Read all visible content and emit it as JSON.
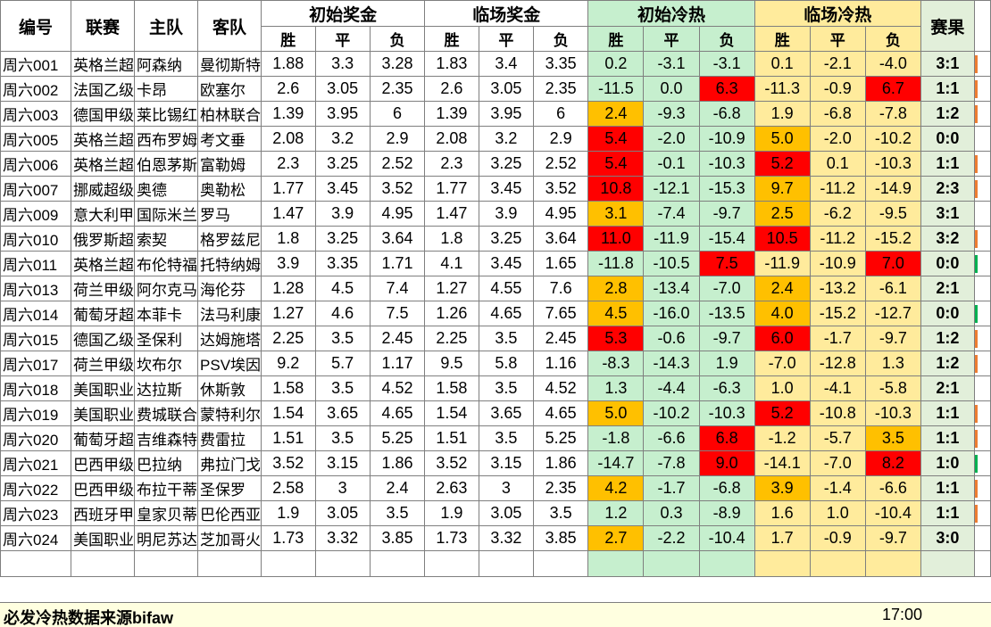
{
  "headers": {
    "id": "编号",
    "league": "联赛",
    "home": "主队",
    "away": "客队",
    "init_odds": "初始奖金",
    "live_odds": "临场奖金",
    "init_heat": "初始冷热",
    "live_heat": "临场冷热",
    "result": "赛果",
    "win": "胜",
    "draw": "平",
    "loss": "负"
  },
  "colors": {
    "red": "#ff0000",
    "orange": "#ffc000",
    "green_edge": "#00b050",
    "orange_edge": "#ed7d31"
  },
  "rows": [
    {
      "id": "周六001",
      "league": "英格兰超",
      "home": "阿森纳",
      "away": "曼彻斯特",
      "io": [
        "1.88",
        "3.3",
        "3.28"
      ],
      "lo": [
        "1.83",
        "3.4",
        "3.35"
      ],
      "ih": [
        "0.2",
        "-3.1",
        "-3.1"
      ],
      "lh": [
        "0.1",
        "-2.1",
        "-4.0"
      ],
      "ihc": [
        "",
        "",
        ""
      ],
      "lhc": [
        "",
        "",
        ""
      ],
      "res": "3:1",
      "edge": "orange"
    },
    {
      "id": "周六002",
      "league": "法国乙级",
      "home": "卡昂",
      "away": "欧塞尔",
      "io": [
        "2.6",
        "3.05",
        "2.35"
      ],
      "lo": [
        "2.6",
        "3.05",
        "2.35"
      ],
      "ih": [
        "-11.5",
        "0.0",
        "6.3"
      ],
      "lh": [
        "-11.3",
        "-0.9",
        "6.7"
      ],
      "ihc": [
        "",
        "",
        "red"
      ],
      "lhc": [
        "",
        "",
        "red"
      ],
      "res": "1:1",
      "edge": "orange"
    },
    {
      "id": "周六003",
      "league": "德国甲级",
      "home": "莱比锡红",
      "away": "柏林联合",
      "io": [
        "1.39",
        "3.95",
        "6"
      ],
      "lo": [
        "1.39",
        "3.95",
        "6"
      ],
      "ih": [
        "2.4",
        "-9.3",
        "-6.8"
      ],
      "lh": [
        "1.9",
        "-6.8",
        "-7.8"
      ],
      "ihc": [
        "orange",
        "",
        ""
      ],
      "lhc": [
        "",
        "",
        ""
      ],
      "res": "1:2",
      "edge": "orange"
    },
    {
      "id": "周六005",
      "league": "英格兰超",
      "home": "西布罗姆",
      "away": "考文垂",
      "io": [
        "2.08",
        "3.2",
        "2.9"
      ],
      "lo": [
        "2.08",
        "3.2",
        "2.9"
      ],
      "ih": [
        "5.4",
        "-2.0",
        "-10.9"
      ],
      "lh": [
        "5.0",
        "-2.0",
        "-10.2"
      ],
      "ihc": [
        "red",
        "",
        ""
      ],
      "lhc": [
        "orange",
        "",
        ""
      ],
      "res": "0:0",
      "edge": ""
    },
    {
      "id": "周六006",
      "league": "英格兰超",
      "home": "伯恩茅斯",
      "away": "富勒姆",
      "io": [
        "2.3",
        "3.25",
        "2.52"
      ],
      "lo": [
        "2.3",
        "3.25",
        "2.52"
      ],
      "ih": [
        "5.4",
        "-0.1",
        "-10.3"
      ],
      "lh": [
        "5.2",
        "0.1",
        "-10.3"
      ],
      "ihc": [
        "red",
        "",
        ""
      ],
      "lhc": [
        "red",
        "",
        ""
      ],
      "res": "1:1",
      "edge": "orange"
    },
    {
      "id": "周六007",
      "league": "挪威超级",
      "home": "奥德",
      "away": "奥勒松",
      "io": [
        "1.77",
        "3.45",
        "3.52"
      ],
      "lo": [
        "1.77",
        "3.45",
        "3.52"
      ],
      "ih": [
        "10.8",
        "-12.1",
        "-15.3"
      ],
      "lh": [
        "9.7",
        "-11.2",
        "-14.9"
      ],
      "ihc": [
        "red",
        "",
        ""
      ],
      "lhc": [
        "orange",
        "",
        ""
      ],
      "res": "2:3",
      "edge": "orange"
    },
    {
      "id": "周六009",
      "league": "意大利甲",
      "home": "国际米兰",
      "away": "罗马",
      "io": [
        "1.47",
        "3.9",
        "4.95"
      ],
      "lo": [
        "1.47",
        "3.9",
        "4.95"
      ],
      "ih": [
        "3.1",
        "-7.4",
        "-9.7"
      ],
      "lh": [
        "2.5",
        "-6.2",
        "-9.5"
      ],
      "ihc": [
        "orange",
        "",
        ""
      ],
      "lhc": [
        "orange",
        "",
        ""
      ],
      "res": "3:1",
      "edge": ""
    },
    {
      "id": "周六010",
      "league": "俄罗斯超",
      "home": "索契",
      "away": "格罗兹尼",
      "io": [
        "1.8",
        "3.25",
        "3.64"
      ],
      "lo": [
        "1.8",
        "3.25",
        "3.64"
      ],
      "ih": [
        "11.0",
        "-11.9",
        "-15.4"
      ],
      "lh": [
        "10.5",
        "-11.2",
        "-15.2"
      ],
      "ihc": [
        "red",
        "",
        ""
      ],
      "lhc": [
        "red",
        "",
        ""
      ],
      "res": "3:2",
      "edge": "orange"
    },
    {
      "id": "周六011",
      "league": "英格兰超",
      "home": "布伦特福",
      "away": "托特纳姆",
      "io": [
        "3.9",
        "3.35",
        "1.71"
      ],
      "lo": [
        "4.1",
        "3.45",
        "1.65"
      ],
      "ih": [
        "-11.8",
        "-10.5",
        "7.5"
      ],
      "lh": [
        "-11.9",
        "-10.9",
        "7.0"
      ],
      "ihc": [
        "",
        "",
        "red"
      ],
      "lhc": [
        "",
        "",
        "red"
      ],
      "res": "0:0",
      "edge": "green"
    },
    {
      "id": "周六013",
      "league": "荷兰甲级",
      "home": "阿尔克马",
      "away": "海伦芬",
      "io": [
        "1.28",
        "4.5",
        "7.4"
      ],
      "lo": [
        "1.27",
        "4.55",
        "7.6"
      ],
      "ih": [
        "2.8",
        "-13.4",
        "-7.0"
      ],
      "lh": [
        "2.4",
        "-13.2",
        "-6.1"
      ],
      "ihc": [
        "orange",
        "",
        ""
      ],
      "lhc": [
        "orange",
        "",
        ""
      ],
      "res": "2:1",
      "edge": ""
    },
    {
      "id": "周六014",
      "league": "葡萄牙超",
      "home": "本菲卡",
      "away": "法马利康",
      "io": [
        "1.27",
        "4.6",
        "7.5"
      ],
      "lo": [
        "1.26",
        "4.65",
        "7.65"
      ],
      "ih": [
        "4.5",
        "-16.0",
        "-13.5"
      ],
      "lh": [
        "4.0",
        "-15.2",
        "-12.7"
      ],
      "ihc": [
        "orange",
        "",
        ""
      ],
      "lhc": [
        "orange",
        "",
        ""
      ],
      "res": "0:0",
      "edge": "green"
    },
    {
      "id": "周六015",
      "league": "德国乙级",
      "home": "圣保利",
      "away": "达姆施塔",
      "io": [
        "2.25",
        "3.5",
        "2.45"
      ],
      "lo": [
        "2.25",
        "3.5",
        "2.45"
      ],
      "ih": [
        "5.3",
        "-0.6",
        "-9.7"
      ],
      "lh": [
        "6.0",
        "-1.7",
        "-9.7"
      ],
      "ihc": [
        "red",
        "",
        ""
      ],
      "lhc": [
        "red",
        "",
        ""
      ],
      "res": "1:2",
      "edge": "orange"
    },
    {
      "id": "周六017",
      "league": "荷兰甲级",
      "home": "坎布尔",
      "away": "PSV埃因",
      "io": [
        "9.2",
        "5.7",
        "1.17"
      ],
      "lo": [
        "9.5",
        "5.8",
        "1.16"
      ],
      "ih": [
        "-8.3",
        "-14.3",
        "1.9"
      ],
      "lh": [
        "-7.0",
        "-12.8",
        "1.3"
      ],
      "ihc": [
        "",
        "",
        ""
      ],
      "lhc": [
        "",
        "",
        ""
      ],
      "res": "1:2",
      "edge": "orange"
    },
    {
      "id": "周六018",
      "league": "美国职业",
      "home": "达拉斯",
      "away": "休斯敦",
      "io": [
        "1.58",
        "3.5",
        "4.52"
      ],
      "lo": [
        "1.58",
        "3.5",
        "4.52"
      ],
      "ih": [
        "1.3",
        "-4.4",
        "-6.3"
      ],
      "lh": [
        "1.0",
        "-4.1",
        "-5.8"
      ],
      "ihc": [
        "",
        "",
        ""
      ],
      "lhc": [
        "",
        "",
        ""
      ],
      "res": "2:1",
      "edge": ""
    },
    {
      "id": "周六019",
      "league": "美国职业",
      "home": "费城联合",
      "away": "蒙特利尔",
      "io": [
        "1.54",
        "3.65",
        "4.65"
      ],
      "lo": [
        "1.54",
        "3.65",
        "4.65"
      ],
      "ih": [
        "5.0",
        "-10.2",
        "-10.3"
      ],
      "lh": [
        "5.2",
        "-10.8",
        "-10.3"
      ],
      "ihc": [
        "orange",
        "",
        ""
      ],
      "lhc": [
        "red",
        "",
        ""
      ],
      "res": "1:1",
      "edge": "orange"
    },
    {
      "id": "周六020",
      "league": "葡萄牙超",
      "home": "吉维森特",
      "away": "费雷拉",
      "io": [
        "1.51",
        "3.5",
        "5.25"
      ],
      "lo": [
        "1.51",
        "3.5",
        "5.25"
      ],
      "ih": [
        "-1.8",
        "-6.6",
        "6.8"
      ],
      "lh": [
        "-1.2",
        "-5.7",
        "3.5"
      ],
      "ihc": [
        "",
        "",
        "red"
      ],
      "lhc": [
        "",
        "",
        "orange"
      ],
      "res": "1:1",
      "edge": "orange"
    },
    {
      "id": "周六021",
      "league": "巴西甲级",
      "home": "巴拉纳",
      "away": "弗拉门戈",
      "io": [
        "3.52",
        "3.15",
        "1.86"
      ],
      "lo": [
        "3.52",
        "3.15",
        "1.86"
      ],
      "ih": [
        "-14.7",
        "-7.8",
        "9.0"
      ],
      "lh": [
        "-14.1",
        "-7.0",
        "8.2"
      ],
      "ihc": [
        "",
        "",
        "red"
      ],
      "lhc": [
        "",
        "",
        "red"
      ],
      "res": "1:0",
      "edge": "green"
    },
    {
      "id": "周六022",
      "league": "巴西甲级",
      "home": "布拉干蒂",
      "away": "圣保罗",
      "io": [
        "2.58",
        "3",
        "2.4"
      ],
      "lo": [
        "2.63",
        "3",
        "2.35"
      ],
      "ih": [
        "4.2",
        "-1.7",
        "-6.8"
      ],
      "lh": [
        "3.9",
        "-1.4",
        "-6.6"
      ],
      "ihc": [
        "orange",
        "",
        ""
      ],
      "lhc": [
        "orange",
        "",
        ""
      ],
      "res": "1:1",
      "edge": "orange"
    },
    {
      "id": "周六023",
      "league": "西班牙甲",
      "home": "皇家贝蒂",
      "away": "巴伦西亚",
      "io": [
        "1.9",
        "3.05",
        "3.5"
      ],
      "lo": [
        "1.9",
        "3.05",
        "3.5"
      ],
      "ih": [
        "1.2",
        "0.3",
        "-8.9"
      ],
      "lh": [
        "1.6",
        "1.0",
        "-10.4"
      ],
      "ihc": [
        "",
        "",
        ""
      ],
      "lhc": [
        "",
        "",
        ""
      ],
      "res": "1:1",
      "edge": "orange"
    },
    {
      "id": "周六024",
      "league": "美国职业",
      "home": "明尼苏达",
      "away": "芝加哥火",
      "io": [
        "1.73",
        "3.32",
        "3.85"
      ],
      "lo": [
        "1.73",
        "3.32",
        "3.85"
      ],
      "ih": [
        "2.7",
        "-2.2",
        "-10.4"
      ],
      "lh": [
        "1.7",
        "-0.9",
        "-9.7"
      ],
      "ihc": [
        "orange",
        "",
        ""
      ],
      "lhc": [
        "",
        "",
        ""
      ],
      "res": "3:0",
      "edge": ""
    }
  ],
  "footer": {
    "source": "必发冷热数据来源bifaw",
    "time": "17:00"
  }
}
